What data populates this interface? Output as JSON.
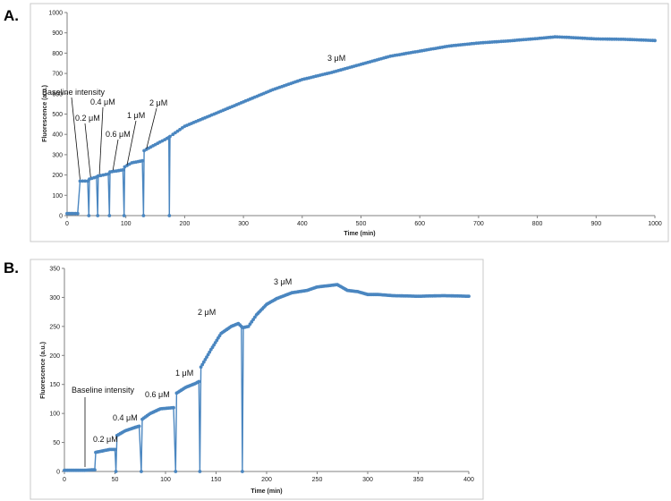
{
  "panels": {
    "a_label": "A.",
    "b_label": "B."
  },
  "colors": {
    "series": "#4a86c0",
    "axis": "#808080",
    "frame": "#c8c8c8"
  },
  "chart_data": [
    {
      "type": "line",
      "panel": "A.",
      "xlabel": "Time (min)",
      "ylabel": "Fluorescence (a.u.)",
      "xlim": [
        0,
        1000
      ],
      "ylim": [
        0,
        1000
      ],
      "xticks": [
        0,
        100,
        200,
        300,
        400,
        500,
        600,
        700,
        800,
        900,
        1000
      ],
      "yticks": [
        0,
        100,
        200,
        300,
        400,
        500,
        600,
        700,
        800,
        900,
        1000
      ],
      "grid": false,
      "legend": "none",
      "series": [
        {
          "points": [
            [
              0,
              10
            ],
            [
              10,
              10
            ],
            [
              18,
              10
            ],
            [
              22,
              170
            ],
            [
              35,
              170
            ],
            [
              37,
              0
            ],
            [
              38,
              180
            ],
            [
              50,
              190
            ],
            [
              52,
              0
            ],
            [
              53,
              195
            ],
            [
              70,
              205
            ],
            [
              72,
              0
            ],
            [
              73,
              215
            ],
            [
              95,
              225
            ],
            [
              97,
              0
            ],
            [
              98,
              240
            ],
            [
              110,
              260
            ],
            [
              128,
              270
            ],
            [
              130,
              0
            ],
            [
              131,
              320
            ],
            [
              150,
              350
            ],
            [
              170,
              380
            ],
            [
              173,
              385
            ],
            [
              174,
              0
            ],
            [
              175,
              390
            ],
            [
              180,
              400
            ],
            [
              200,
              440
            ],
            [
              250,
              500
            ],
            [
              300,
              560
            ],
            [
              350,
              620
            ],
            [
              400,
              670
            ],
            [
              450,
              705
            ],
            [
              500,
              745
            ],
            [
              550,
              785
            ],
            [
              600,
              810
            ],
            [
              650,
              835
            ],
            [
              700,
              850
            ],
            [
              750,
              860
            ],
            [
              800,
              872
            ],
            [
              830,
              880
            ],
            [
              850,
              878
            ],
            [
              900,
              870
            ],
            [
              950,
              868
            ],
            [
              1000,
              862
            ]
          ]
        }
      ],
      "annotations": [
        {
          "text": "Baseline intensity",
          "x": 22,
          "y": 170
        },
        {
          "text": "0.2 μM",
          "x": 40,
          "y": 180
        },
        {
          "text": "0.4 μM",
          "x": 55,
          "y": 195
        },
        {
          "text": "0.6 μM",
          "x": 78,
          "y": 215
        },
        {
          "text": "1 μM",
          "x": 102,
          "y": 240
        },
        {
          "text": "2 μM",
          "x": 135,
          "y": 320
        },
        {
          "text": "3 μM",
          "x": 450,
          "y": 720
        }
      ]
    },
    {
      "type": "line",
      "panel": "B.",
      "xlabel": "Time (min)",
      "ylabel": "Fluorescence (a.u.)",
      "xlim": [
        0,
        400
      ],
      "ylim": [
        0,
        350
      ],
      "xticks": [
        0,
        50,
        100,
        150,
        200,
        250,
        300,
        350,
        400
      ],
      "yticks": [
        0,
        50,
        100,
        150,
        200,
        250,
        300,
        350
      ],
      "grid": false,
      "legend": "none",
      "series": [
        {
          "points": [
            [
              0,
              2
            ],
            [
              20,
              2
            ],
            [
              30,
              3
            ],
            [
              31,
              33
            ],
            [
              45,
              38
            ],
            [
              50,
              38
            ],
            [
              51,
              0
            ],
            [
              52,
              62
            ],
            [
              60,
              70
            ],
            [
              70,
              76
            ],
            [
              74,
              78
            ],
            [
              76,
              0
            ],
            [
              77,
              90
            ],
            [
              85,
              100
            ],
            [
              95,
              108
            ],
            [
              108,
              110
            ],
            [
              110,
              0
            ],
            [
              111,
              135
            ],
            [
              120,
              145
            ],
            [
              130,
              152
            ],
            [
              133,
              155
            ],
            [
              134,
              0
            ],
            [
              135,
              180
            ],
            [
              145,
              210
            ],
            [
              155,
              238
            ],
            [
              165,
              250
            ],
            [
              172,
              255
            ],
            [
              175,
              250
            ],
            [
              176,
              0
            ],
            [
              177,
              248
            ],
            [
              182,
              250
            ],
            [
              190,
              270
            ],
            [
              200,
              288
            ],
            [
              210,
              298
            ],
            [
              225,
              308
            ],
            [
              240,
              312
            ],
            [
              250,
              318
            ],
            [
              260,
              320
            ],
            [
              270,
              322
            ],
            [
              280,
              312
            ],
            [
              290,
              310
            ],
            [
              300,
              305
            ],
            [
              310,
              305
            ],
            [
              325,
              303
            ],
            [
              350,
              302
            ],
            [
              375,
              303
            ],
            [
              400,
              302
            ]
          ]
        }
      ],
      "annotations": [
        {
          "text": "Baseline intensity",
          "x": 20,
          "y": 2
        },
        {
          "text": "0.2 μM",
          "x": 40
        },
        {
          "text": "0.4 μM",
          "x": 65
        },
        {
          "text": "0.6 μM",
          "x": 92
        },
        {
          "text": "1 μM",
          "x": 120
        },
        {
          "text": "2 μM",
          "x": 143
        },
        {
          "text": "3 μM",
          "x": 215
        }
      ]
    }
  ]
}
